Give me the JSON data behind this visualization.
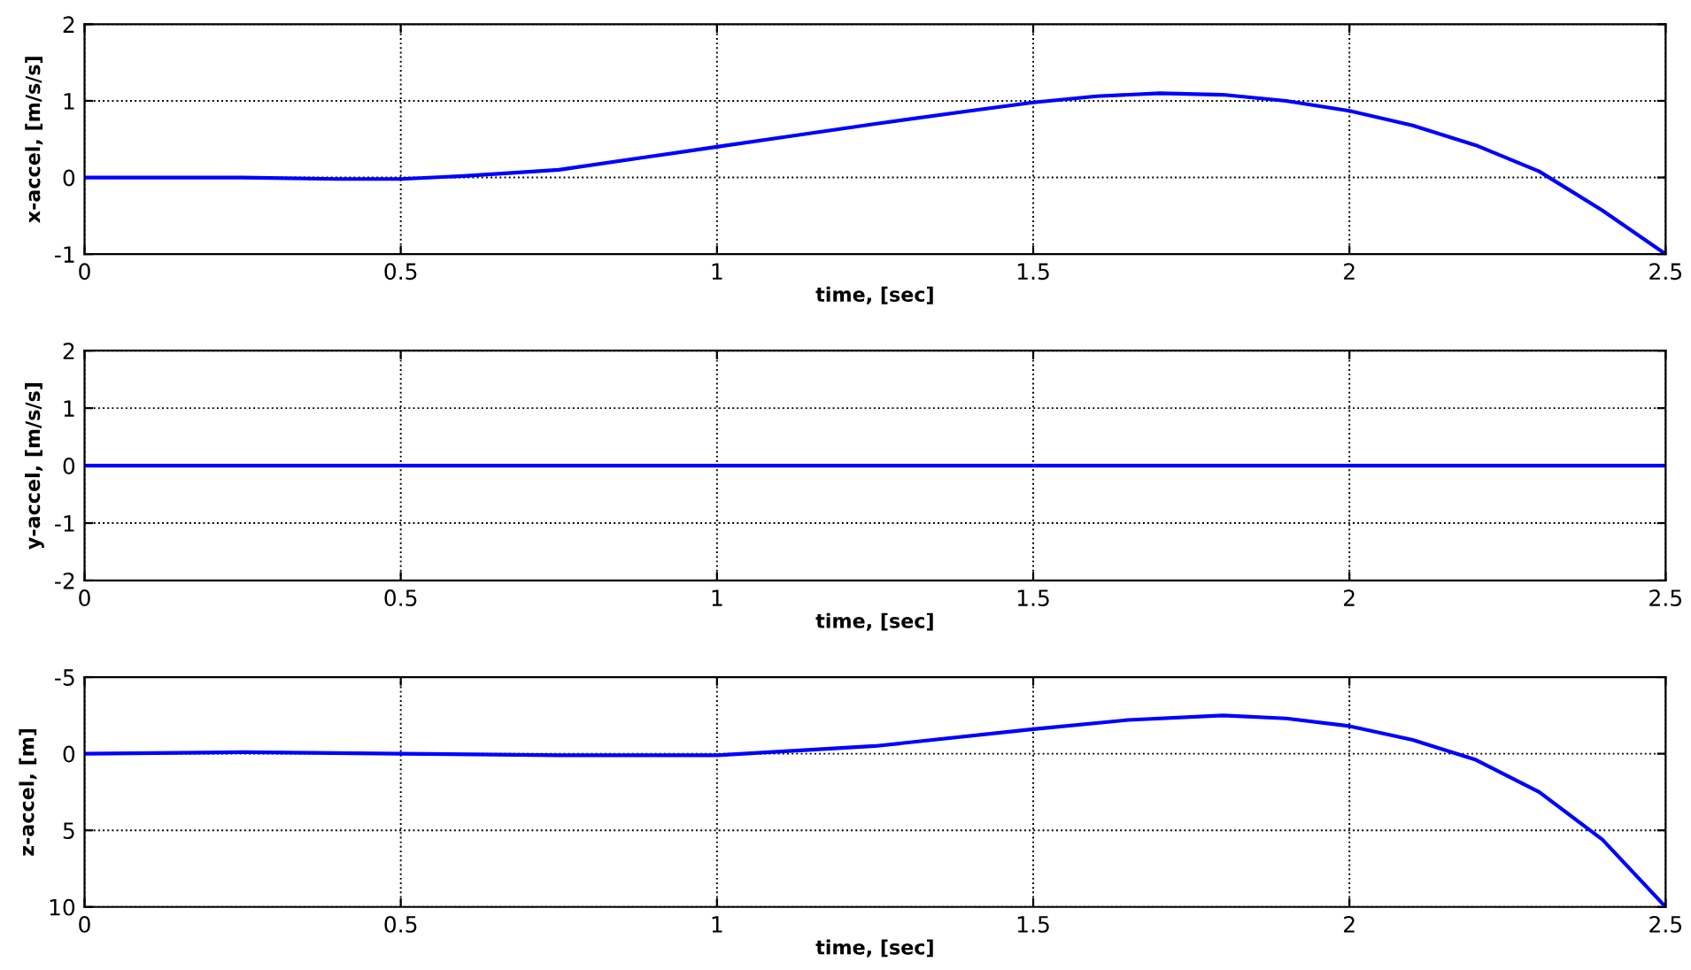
{
  "chart_data": [
    {
      "type": "line",
      "xlabel": "time, [sec]",
      "ylabel": "x-accel, [m/s/s]",
      "xlim": [
        0,
        2.5
      ],
      "xticks": [
        0,
        0.5,
        1,
        1.5,
        2,
        2.5
      ],
      "ylim": [
        -1,
        2
      ],
      "yticks": [
        -1,
        0,
        1,
        2
      ],
      "grid": true,
      "series": [
        {
          "color": "#0000ff",
          "x": [
            0,
            0.25,
            0.4,
            0.5,
            0.6,
            0.75,
            0.9,
            1.0,
            1.1,
            1.25,
            1.4,
            1.5,
            1.6,
            1.7,
            1.8,
            1.9,
            2.0,
            2.1,
            2.2,
            2.3,
            2.4,
            2.5
          ],
          "values": [
            0,
            0,
            -0.02,
            -0.02,
            0.02,
            0.1,
            0.28,
            0.4,
            0.52,
            0.7,
            0.87,
            0.98,
            1.06,
            1.1,
            1.08,
            1.0,
            0.87,
            0.68,
            0.42,
            0.08,
            -0.43,
            -1.0
          ]
        }
      ]
    },
    {
      "type": "line",
      "xlabel": "time, [sec]",
      "ylabel": "y-accel, [m/s/s]",
      "xlim": [
        0,
        2.5
      ],
      "xticks": [
        0,
        0.5,
        1,
        1.5,
        2,
        2.5
      ],
      "ylim": [
        -2,
        2
      ],
      "yticks": [
        -2,
        -1,
        0,
        1,
        2
      ],
      "grid": true,
      "series": [
        {
          "color": "#0000ff",
          "x": [
            0,
            0.5,
            1.0,
            1.5,
            2.0,
            2.5
          ],
          "values": [
            0,
            0,
            0,
            0,
            0,
            0
          ]
        }
      ]
    },
    {
      "type": "line",
      "xlabel": "time, [sec]",
      "ylabel": "z-accel, [m]",
      "xlim": [
        0,
        2.5
      ],
      "xticks": [
        0,
        0.5,
        1,
        1.5,
        2,
        2.5
      ],
      "ylim": [
        10,
        -5
      ],
      "yticks": [
        -5,
        0,
        5,
        10
      ],
      "grid": true,
      "series": [
        {
          "color": "#0000ff",
          "x": [
            0,
            0.25,
            0.5,
            0.75,
            1.0,
            1.25,
            1.5,
            1.65,
            1.8,
            1.9,
            2.0,
            2.1,
            2.2,
            2.3,
            2.4,
            2.5
          ],
          "values": [
            0,
            -0.1,
            0,
            0.1,
            0.1,
            -0.5,
            -1.6,
            -2.2,
            -2.5,
            -2.3,
            -1.8,
            -0.9,
            0.4,
            2.5,
            5.6,
            10
          ]
        }
      ]
    }
  ]
}
